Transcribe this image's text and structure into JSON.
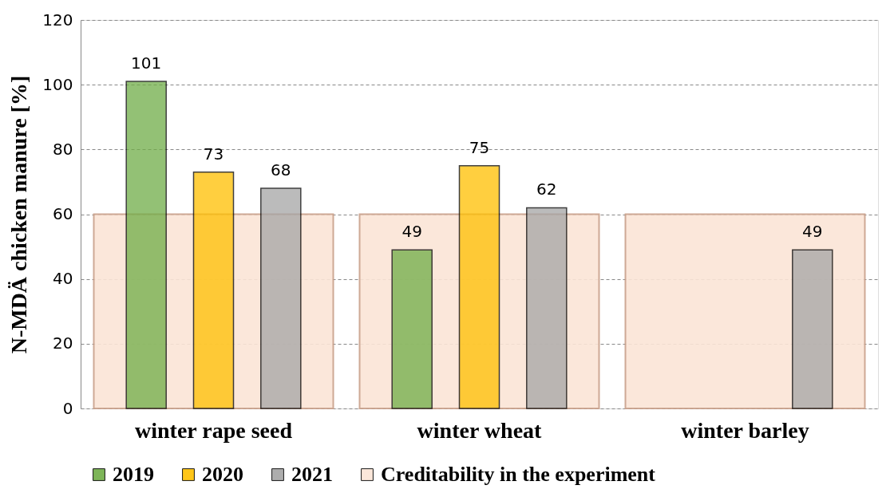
{
  "chart_data": {
    "type": "bar",
    "ylabel": "N-MDÄ chicken manure [%]",
    "categories": [
      "winter rape seed",
      "winter wheat",
      "winter barley"
    ],
    "series": [
      {
        "name": "2019",
        "color": "#70ad47",
        "values": [
          101,
          49,
          null
        ],
        "value_labels": [
          "101",
          "49",
          null
        ]
      },
      {
        "name": "2020",
        "color": "#ffc000",
        "values": [
          73,
          75,
          null
        ],
        "value_labels": [
          "73",
          "75",
          null
        ]
      },
      {
        "name": "2021",
        "color": "#a5a5a5",
        "values": [
          68,
          62,
          49
        ],
        "value_labels": [
          "68",
          "62",
          "49"
        ]
      },
      {
        "name": "Creditability in the experiment",
        "color": "#fbe5d6",
        "values": [
          60,
          60,
          60
        ]
      }
    ],
    "ylim": [
      0,
      120
    ],
    "yticks": [
      0,
      20,
      40,
      60,
      80,
      100,
      120
    ],
    "grid": "y",
    "legend": "bottom"
  }
}
